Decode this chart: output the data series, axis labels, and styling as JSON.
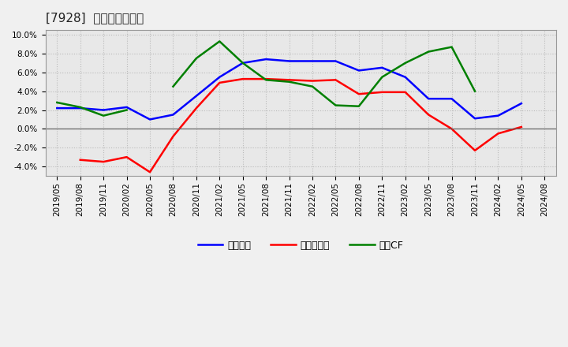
{
  "title": "[7928]  マージンの推移",
  "x_labels": [
    "2019/05",
    "2019/08",
    "2019/11",
    "2020/02",
    "2020/05",
    "2020/08",
    "2020/11",
    "2021/02",
    "2021/05",
    "2021/08",
    "2021/11",
    "2022/02",
    "2022/05",
    "2022/08",
    "2022/11",
    "2023/02",
    "2023/05",
    "2023/08",
    "2023/11",
    "2024/02",
    "2024/05",
    "2024/08"
  ],
  "keijo_rieki": [
    2.2,
    2.2,
    2.0,
    2.3,
    1.0,
    1.5,
    3.5,
    5.5,
    7.0,
    7.4,
    7.2,
    7.2,
    7.2,
    6.2,
    6.5,
    5.5,
    3.2,
    3.2,
    1.1,
    1.4,
    2.7,
    null
  ],
  "touki_junseki": [
    null,
    -3.3,
    -3.5,
    -3.0,
    -4.6,
    -0.8,
    2.2,
    4.9,
    5.3,
    5.3,
    5.2,
    5.1,
    5.2,
    3.7,
    3.9,
    3.9,
    1.5,
    0.0,
    -2.3,
    -0.5,
    0.2,
    null
  ],
  "eigyo_cf": [
    2.8,
    2.3,
    1.4,
    2.0,
    null,
    4.5,
    7.5,
    9.3,
    7.0,
    5.2,
    5.0,
    4.5,
    2.5,
    2.4,
    5.5,
    7.0,
    8.2,
    8.7,
    4.0,
    null,
    null,
    null
  ],
  "line_colors": {
    "keijo_rieki": "#0000ff",
    "touki_junseki": "#ff0000",
    "eigyo_cf": "#008000"
  },
  "legend_labels": {
    "keijo_rieki": "経常利益",
    "touki_junseki": "当期純利益",
    "eigyo_cf": "営業CF"
  },
  "ylim": [
    -5.0,
    10.5
  ],
  "yticks": [
    -4.0,
    -2.0,
    0.0,
    2.0,
    4.0,
    6.0,
    8.0,
    10.0
  ],
  "background_color": "#f0f0f0",
  "plot_bg_color": "#e8e8e8",
  "grid_color": "#bbbbbb",
  "title_fontsize": 11,
  "tick_fontsize": 7.5,
  "legend_fontsize": 9,
  "linewidth": 1.8
}
